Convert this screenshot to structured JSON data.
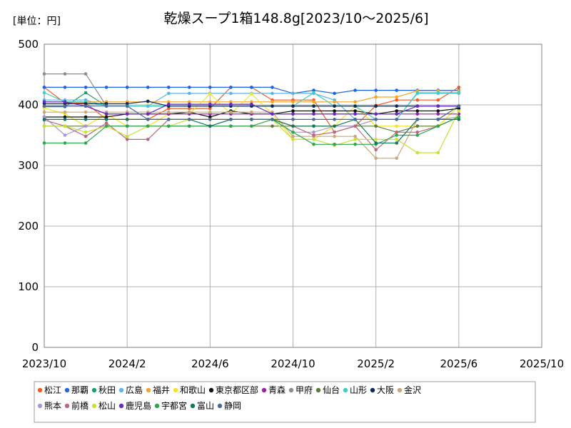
{
  "chart_data": {
    "type": "line",
    "title": "乾燥スープ1箱148.8g[2023/10～2025/6]",
    "unit_label": "[単位：円]",
    "xlabel": "",
    "ylabel": "",
    "x_ticks": [
      "2023/10",
      "2024/2",
      "2024/6",
      "2024/10",
      "2025/2",
      "2025/6",
      "2025/10"
    ],
    "y_ticks": [
      "0",
      "100",
      "200",
      "300",
      "400",
      "500"
    ],
    "ylim": [
      0,
      500
    ],
    "x_range": [
      "2023/10",
      "2025/10"
    ],
    "grid": true,
    "legend_position": "bottom",
    "months": [
      "2023/10",
      "2023/11",
      "2023/12",
      "2024/1",
      "2024/2",
      "2024/3",
      "2024/4",
      "2024/5",
      "2024/6",
      "2024/7",
      "2024/8",
      "2024/9",
      "2024/10",
      "2024/11",
      "2024/12",
      "2025/1",
      "2025/2",
      "2025/3",
      "2025/4",
      "2025/5",
      "2025/6"
    ],
    "series": [
      {
        "name": "松江",
        "color": "#f05a23",
        "values": [
          429,
          403,
          403,
          376,
          376,
          376,
          394,
          394,
          394,
          429,
          429,
          408,
          408,
          408,
          355,
          365,
          399,
          408,
          408,
          408,
          429
        ]
      },
      {
        "name": "那覇",
        "color": "#1f63e6",
        "values": [
          429,
          429,
          429,
          429,
          429,
          429,
          429,
          429,
          429,
          429,
          429,
          429,
          419,
          424,
          419,
          424,
          424,
          424,
          424,
          424,
          424
        ]
      },
      {
        "name": "秋田",
        "color": "#18a06a",
        "values": [
          397,
          397,
          420,
          398,
          398,
          398,
          398,
          398,
          398,
          398,
          398,
          398,
          398,
          398,
          398,
          398,
          398,
          398,
          398,
          398,
          398
        ]
      },
      {
        "name": "広島",
        "color": "#5ab4e6",
        "values": [
          408,
          408,
          408,
          398,
          398,
          398,
          419,
          419,
          419,
          419,
          419,
          419,
          419,
          419,
          408,
          376,
          376,
          376,
          419,
          419,
          419
        ]
      },
      {
        "name": "福井",
        "color": "#f5a623",
        "values": [
          405,
          405,
          405,
          405,
          405,
          405,
          405,
          405,
          405,
          405,
          405,
          405,
          405,
          405,
          405,
          405,
          413,
          413,
          423,
          423,
          423
        ]
      },
      {
        "name": "和歌山",
        "color": "#f5e41f",
        "values": [
          395,
          385,
          365,
          385,
          365,
          365,
          385,
          385,
          418,
          385,
          418,
          385,
          343,
          343,
          365,
          398,
          365,
          365,
          365,
          365,
          398
        ]
      },
      {
        "name": "東京都区部",
        "color": "#111111",
        "values": [
          380,
          380,
          380,
          380,
          385,
          385,
          385,
          388,
          380,
          390,
          385,
          385,
          390,
          390,
          390,
          390,
          385,
          390,
          390,
          390,
          394
        ]
      },
      {
        "name": "青森",
        "color": "#9b1fa8",
        "values": [
          398,
          398,
          398,
          385,
          385,
          385,
          385,
          385,
          385,
          385,
          385,
          385,
          385,
          385,
          385,
          385,
          385,
          385,
          385,
          385,
          385
        ]
      },
      {
        "name": "甲府",
        "color": "#8c8c8c",
        "values": [
          451,
          451,
          451,
          398,
          398,
          398,
          398,
          398,
          398,
          398,
          398,
          398,
          398,
          398,
          398,
          398,
          398,
          398,
          398,
          398,
          398
        ]
      },
      {
        "name": "仙台",
        "color": "#5a7a3a",
        "values": [
          365,
          365,
          365,
          365,
          365,
          365,
          365,
          365,
          365,
          365,
          365,
          365,
          365,
          365,
          365,
          365,
          365,
          355,
          365,
          365,
          380
        ]
      },
      {
        "name": "山形",
        "color": "#3ccfc8",
        "values": [
          420,
          405,
          405,
          398,
          398,
          398,
          398,
          398,
          398,
          398,
          398,
          398,
          398,
          420,
          398,
          398,
          376,
          376,
          420,
          420,
          420
        ]
      },
      {
        "name": "大阪",
        "color": "#0e2a4e",
        "values": [
          402,
          402,
          402,
          402,
          402,
          406,
          398,
          398,
          398,
          398,
          398,
          398,
          398,
          398,
          398,
          398,
          398,
          398,
          398,
          398,
          398
        ]
      },
      {
        "name": "金沢",
        "color": "#c8a878",
        "values": [
          388,
          388,
          388,
          388,
          388,
          388,
          388,
          388,
          388,
          388,
          388,
          388,
          348,
          348,
          348,
          348,
          312,
          312,
          376,
          376,
          398
        ]
      },
      {
        "name": "熊本",
        "color": "#a898d0",
        "values": [
          380,
          350,
          365,
          365,
          365,
          365,
          365,
          365,
          365,
          376,
          376,
          376,
          355,
          355,
          365,
          365,
          376,
          376,
          376,
          376,
          380
        ]
      },
      {
        "name": "前橋",
        "color": "#b86a7a",
        "values": [
          375,
          365,
          348,
          370,
          343,
          343,
          376,
          376,
          376,
          376,
          376,
          376,
          365,
          350,
          355,
          365,
          326,
          355,
          355,
          365,
          380
        ]
      },
      {
        "name": "松山",
        "color": "#c8e03a",
        "values": [
          365,
          365,
          355,
          365,
          348,
          365,
          365,
          376,
          376,
          376,
          376,
          376,
          343,
          343,
          333,
          343,
          343,
          343,
          321,
          321,
          390
        ]
      },
      {
        "name": "鹿児島",
        "color": "#6a2ac0",
        "values": [
          405,
          405,
          398,
          385,
          385,
          385,
          401,
          401,
          401,
          401,
          401,
          385,
          385,
          385,
          385,
          385,
          385,
          385,
          398,
          398,
          398
        ]
      },
      {
        "name": "宇都宮",
        "color": "#2aa84a",
        "values": [
          337,
          337,
          337,
          365,
          365,
          365,
          365,
          365,
          365,
          365,
          365,
          376,
          355,
          335,
          335,
          335,
          335,
          350,
          350,
          365,
          380
        ]
      },
      {
        "name": "富山",
        "color": "#107a58",
        "values": [
          376,
          376,
          376,
          376,
          376,
          376,
          376,
          376,
          365,
          376,
          376,
          376,
          365,
          365,
          365,
          376,
          337,
          337,
          376,
          376,
          376
        ]
      },
      {
        "name": "静岡",
        "color": "#4a6a9a",
        "values": [
          398,
          398,
          398,
          398,
          398,
          376,
          376,
          376,
          376,
          376,
          376,
          376,
          376,
          376,
          376,
          376,
          376,
          376,
          376,
          376,
          398
        ]
      }
    ]
  }
}
